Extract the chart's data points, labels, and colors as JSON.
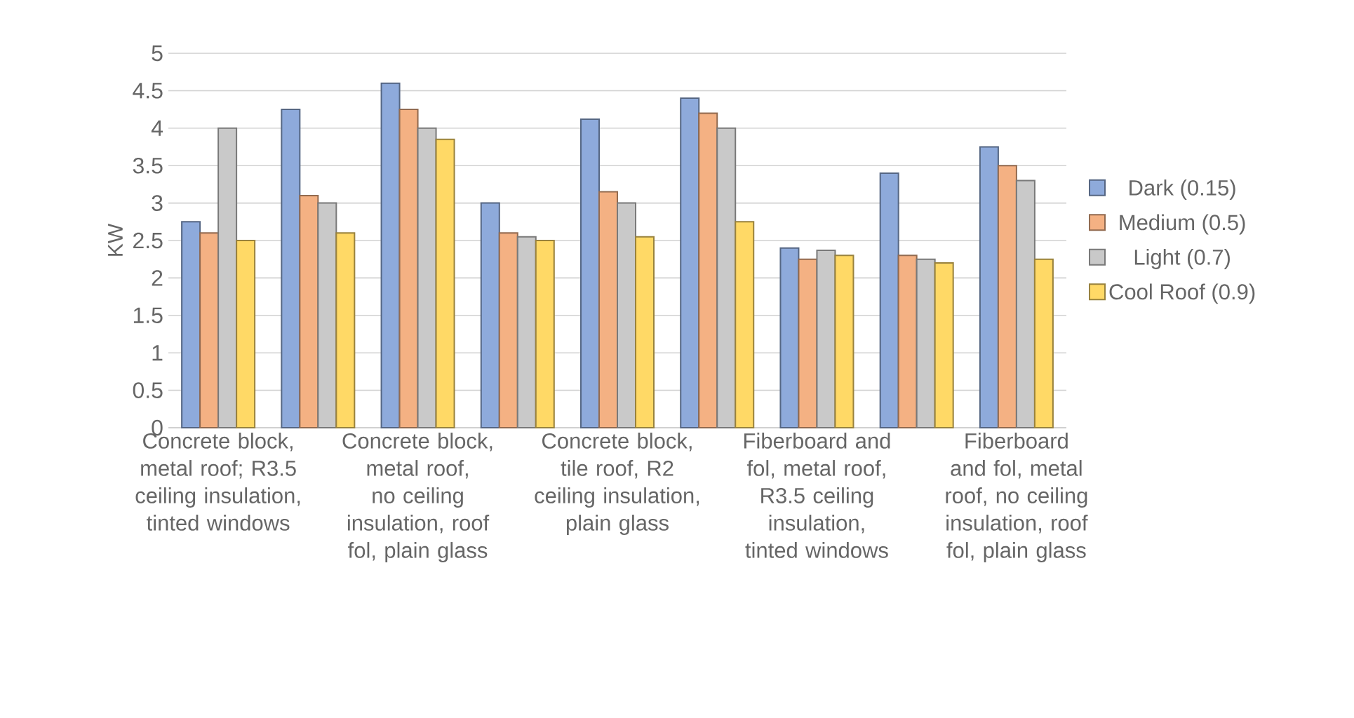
{
  "chart_data": {
    "type": "bar",
    "ylabel": "KW",
    "categories": [
      "Concrete block, metal roof; R3.5 ceiling insulation, tinted windows",
      null,
      "Concrete block, metal roof, no ceiling insulation, roof fol, plain glass",
      null,
      "Concrete block, tile roof, R2 ceiling insulation, plain glass",
      null,
      "Fiberboard and fol, metal roof, R3.5 ceiling insulation, tinted windows",
      null,
      "Fiberboard and fol, metal roof, no ceiling insulation, roof fol, plain glass"
    ],
    "series": [
      {
        "name": "Dark (0.15)",
        "color": "#8eaadb",
        "values": [
          2.75,
          4.25,
          4.6,
          3.0,
          4.12,
          4.4,
          2.4,
          3.4,
          3.75
        ]
      },
      {
        "name": "Medium (0.5)",
        "color": "#f4b183",
        "values": [
          2.6,
          3.1,
          4.25,
          2.6,
          3.15,
          4.2,
          2.25,
          2.3,
          3.5
        ]
      },
      {
        "name": "Light (0.7)",
        "color": "#c9c9c9",
        "values": [
          4.0,
          3.0,
          4.0,
          2.55,
          3.0,
          4.0,
          2.37,
          2.25,
          3.3
        ]
      },
      {
        "name": "Cool Roof (0.9)",
        "color": "#ffd966",
        "values": [
          2.5,
          2.6,
          3.85,
          2.5,
          2.55,
          2.75,
          2.3,
          2.2,
          2.25
        ]
      }
    ],
    "ylim": [
      0,
      5
    ],
    "yticks": [
      0,
      0.5,
      1,
      1.5,
      2,
      2.5,
      3,
      3.5,
      4,
      4.5,
      5
    ],
    "grid": "y",
    "legend": "right"
  }
}
